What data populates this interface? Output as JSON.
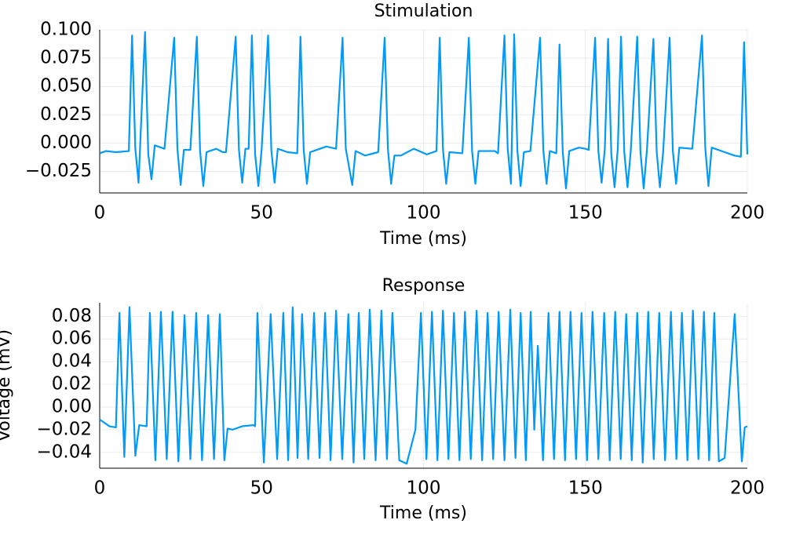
{
  "chart_data": [
    {
      "type": "line",
      "title": "Stimulation",
      "xlabel": "Time (ms)",
      "grid": true,
      "xlim": [
        0,
        200
      ],
      "xticks": [
        0,
        50,
        100,
        150,
        200
      ],
      "ylim": [
        -0.044,
        0.1
      ],
      "yticks": [
        {
          "value": 0.1,
          "label": "0.100"
        },
        {
          "value": 0.075,
          "label": "0.075"
        },
        {
          "value": 0.05,
          "label": "0.050"
        },
        {
          "value": 0.025,
          "label": "0.025"
        },
        {
          "value": 0,
          "label": "0.000"
        },
        {
          "value": -0.025,
          "label": "−0.025"
        }
      ],
      "series": [
        {
          "color": "#009af9",
          "x": [
            0,
            2,
            5,
            9,
            10,
            11,
            12,
            14,
            15,
            16,
            17,
            20,
            23,
            24,
            25,
            26,
            28,
            30,
            31,
            32,
            33,
            36,
            38,
            39,
            42,
            43,
            44,
            45,
            46,
            47,
            48,
            49,
            50,
            52,
            53,
            54,
            55,
            58,
            61,
            62,
            63,
            64,
            65,
            70,
            73,
            75,
            76,
            78,
            79,
            82,
            86,
            88,
            89,
            90,
            91,
            93,
            97,
            101,
            104,
            105,
            106,
            107,
            108,
            112,
            114,
            115,
            116,
            117,
            122,
            123,
            125,
            126,
            127,
            128,
            129,
            130,
            131,
            133,
            136,
            137,
            138,
            139,
            141,
            142,
            143,
            144,
            145,
            148,
            150,
            151,
            153,
            154,
            155,
            156,
            157,
            158,
            159,
            160,
            161,
            162,
            163,
            164,
            166,
            167,
            168,
            169,
            171,
            172,
            173,
            174,
            176,
            177,
            178,
            179,
            183,
            186,
            187,
            188,
            189,
            193,
            196,
            198,
            199,
            200
          ],
          "values": [
            -0.009,
            -0.007,
            -0.008,
            -0.007,
            0.095,
            -0.005,
            -0.035,
            0.098,
            -0.01,
            -0.032,
            -0.002,
            -0.005,
            0.093,
            -0.005,
            -0.037,
            -0.006,
            -0.006,
            0.094,
            -0.007,
            -0.038,
            -0.008,
            -0.005,
            -0.008,
            -0.008,
            0.094,
            -0.006,
            -0.035,
            -0.005,
            -0.005,
            0.095,
            -0.01,
            -0.038,
            -0.006,
            0.095,
            -0.006,
            -0.035,
            -0.005,
            -0.008,
            -0.009,
            0.094,
            -0.006,
            -0.036,
            -0.008,
            -0.003,
            -0.005,
            0.093,
            -0.005,
            -0.037,
            -0.007,
            -0.011,
            -0.008,
            0.093,
            -0.005,
            -0.036,
            -0.011,
            -0.011,
            -0.005,
            -0.01,
            -0.007,
            0.093,
            -0.005,
            -0.036,
            -0.008,
            -0.009,
            0.093,
            -0.007,
            -0.036,
            -0.007,
            -0.007,
            -0.009,
            0.095,
            -0.005,
            -0.036,
            0.096,
            -0.007,
            -0.038,
            -0.008,
            -0.007,
            0.093,
            -0.006,
            -0.036,
            -0.007,
            -0.009,
            0.087,
            -0.008,
            -0.04,
            -0.007,
            -0.004,
            -0.005,
            -0.006,
            0.093,
            -0.007,
            -0.035,
            -0.005,
            0.092,
            -0.01,
            -0.039,
            -0.005,
            0.094,
            -0.008,
            -0.039,
            -0.007,
            0.094,
            -0.008,
            -0.04,
            -0.006,
            0.092,
            -0.007,
            -0.039,
            -0.008,
            0.093,
            -0.007,
            -0.036,
            -0.004,
            -0.005,
            0.095,
            -0.004,
            -0.038,
            -0.004,
            -0.008,
            -0.011,
            -0.012,
            0.089,
            -0.01
          ]
        }
      ]
    },
    {
      "type": "line",
      "title": "Response",
      "xlabel": "Time (ms)",
      "ylabel": "Voltage (mV)",
      "grid": true,
      "xlim": [
        0,
        200
      ],
      "xticks": [
        0,
        50,
        100,
        150,
        200
      ],
      "ylim": [
        -0.054,
        0.092
      ],
      "yticks": [
        0.08,
        0.06,
        0.04,
        0.02,
        {
          "value": 0,
          "label": "0.00"
        },
        {
          "value": -0.02,
          "label": "−0.02"
        },
        {
          "value": -0.04,
          "label": "−0.04"
        }
      ],
      "series": [
        {
          "color": "#009af9",
          "x": [
            0,
            3,
            5,
            6.1,
            7.6,
            9.2,
            11,
            12.2,
            14.5,
            15.5,
            17.2,
            18.9,
            20.7,
            22.5,
            24.3,
            26.2,
            28.0,
            29.8,
            31.6,
            33.5,
            35.3,
            37.1,
            38.5,
            39.5,
            41,
            44,
            47.5,
            48,
            48.7,
            50.7,
            52.8,
            54.8,
            56.7,
            58.2,
            59.6,
            61.1,
            62.5,
            64.4,
            66.2,
            67.9,
            69.6,
            71.3,
            73.0,
            74.9,
            76.8,
            78.4,
            80.0,
            81.7,
            83.4,
            85.2,
            87.0,
            88.7,
            90.4,
            92.5,
            94.8,
            97.5,
            99.2,
            100.9,
            102.6,
            104.3,
            106.0,
            107.7,
            109.4,
            111.1,
            112.8,
            114.6,
            116.4,
            118.1,
            119.8,
            121.5,
            123.2,
            125.0,
            126.8,
            128.4,
            130.0,
            131.6,
            133.1,
            134.2,
            135.3,
            136.9,
            138.6,
            140.3,
            142.0,
            143.7,
            145.4,
            147.1,
            148.8,
            150.5,
            152.2,
            154.0,
            155.8,
            157.5,
            159.2,
            160.9,
            162.6,
            164.3,
            166.0,
            167.7,
            169.4,
            171.1,
            172.8,
            174.6,
            176.4,
            178.1,
            179.8,
            181.5,
            183.2,
            184.9,
            186.6,
            188.2,
            189.8,
            191.2,
            193.0,
            196.1,
            198.3,
            199.2,
            200
          ],
          "values": [
            -0.011,
            -0.017,
            -0.018,
            0.083,
            -0.044,
            0.088,
            -0.043,
            -0.016,
            -0.017,
            0.083,
            -0.047,
            0.084,
            -0.046,
            0.084,
            -0.048,
            0.081,
            -0.046,
            0.083,
            -0.047,
            0.081,
            -0.046,
            0.082,
            -0.047,
            -0.019,
            -0.02,
            -0.017,
            -0.016,
            -0.017,
            0.083,
            -0.049,
            0.082,
            -0.046,
            0.083,
            -0.047,
            0.088,
            -0.045,
            0.082,
            -0.046,
            0.083,
            -0.045,
            0.083,
            -0.047,
            0.085,
            -0.046,
            0.082,
            -0.049,
            0.083,
            -0.046,
            0.086,
            -0.047,
            0.085,
            -0.046,
            0.083,
            -0.047,
            -0.05,
            -0.02,
            0.083,
            -0.046,
            0.084,
            -0.047,
            0.085,
            -0.046,
            0.083,
            -0.047,
            0.084,
            -0.046,
            0.085,
            -0.047,
            0.083,
            -0.046,
            0.084,
            -0.047,
            0.086,
            -0.045,
            0.083,
            -0.047,
            0.084,
            -0.02,
            0.054,
            -0.047,
            0.083,
            -0.046,
            0.084,
            -0.047,
            0.084,
            -0.046,
            0.083,
            -0.047,
            0.084,
            -0.046,
            0.083,
            -0.047,
            0.084,
            -0.046,
            0.082,
            -0.047,
            0.083,
            -0.049,
            0.084,
            -0.046,
            0.083,
            -0.047,
            0.084,
            -0.046,
            0.083,
            -0.047,
            0.085,
            -0.046,
            0.084,
            -0.047,
            0.083,
            -0.048,
            -0.045,
            0.082,
            -0.048,
            -0.018,
            -0.017
          ]
        }
      ]
    }
  ]
}
